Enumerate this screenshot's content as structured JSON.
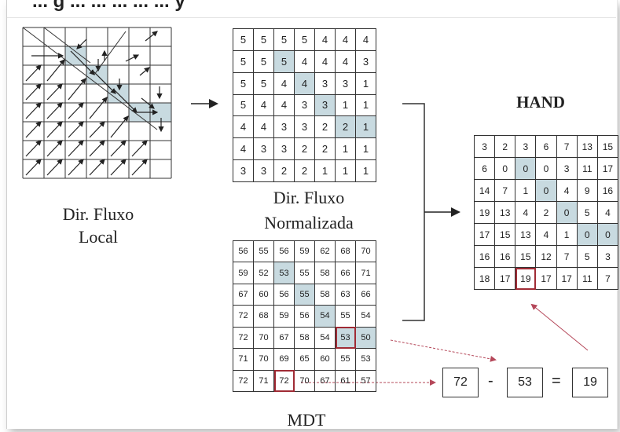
{
  "cut_header": "... g ... ... ... ... ... y",
  "local_flow": {
    "label_line1": "Dir. Fluxo",
    "label_line2": "Local"
  },
  "norm_flow": {
    "label_line1": "Dir. Fluxo",
    "label_line2": "Normalizada",
    "rows": [
      [
        "5",
        "5",
        "5",
        "5",
        "4",
        "4",
        "4"
      ],
      [
        "5",
        "5",
        "5",
        "4",
        "4",
        "4",
        "3"
      ],
      [
        "5",
        "5",
        "4",
        "4",
        "3",
        "3",
        "1"
      ],
      [
        "5",
        "4",
        "4",
        "3",
        "3",
        "1",
        "1"
      ],
      [
        "4",
        "4",
        "3",
        "3",
        "2",
        "2",
        "1"
      ],
      [
        "4",
        "3",
        "3",
        "2",
        "2",
        "1",
        "1"
      ],
      [
        "3",
        "3",
        "2",
        "2",
        "1",
        "1",
        "1"
      ]
    ],
    "highlight": [
      [
        1,
        2
      ],
      [
        2,
        3
      ],
      [
        3,
        4
      ],
      [
        4,
        5
      ],
      [
        4,
        6
      ]
    ]
  },
  "mdt": {
    "label": "MDT",
    "rows": [
      [
        "56",
        "55",
        "56",
        "59",
        "62",
        "68",
        "70"
      ],
      [
        "59",
        "52",
        "53",
        "55",
        "58",
        "66",
        "71"
      ],
      [
        "67",
        "60",
        "56",
        "55",
        "58",
        "63",
        "66"
      ],
      [
        "72",
        "68",
        "59",
        "56",
        "54",
        "55",
        "54"
      ],
      [
        "72",
        "70",
        "67",
        "58",
        "54",
        "53",
        "50"
      ],
      [
        "71",
        "70",
        "69",
        "65",
        "60",
        "55",
        "53"
      ],
      [
        "72",
        "71",
        "72",
        "70",
        "67",
        "61",
        "57"
      ]
    ],
    "highlight": [
      [
        1,
        2
      ],
      [
        2,
        3
      ],
      [
        3,
        4
      ],
      [
        4,
        5
      ],
      [
        4,
        6
      ]
    ],
    "boxed": [
      [
        4,
        5
      ],
      [
        6,
        2
      ]
    ]
  },
  "hand": {
    "title": "HAND",
    "rows": [
      [
        "3",
        "2",
        "3",
        "6",
        "7",
        "13",
        "15"
      ],
      [
        "6",
        "0",
        "0",
        "0",
        "3",
        "11",
        "17"
      ],
      [
        "14",
        "7",
        "1",
        "0",
        "4",
        "9",
        "16"
      ],
      [
        "19",
        "13",
        "4",
        "2",
        "0",
        "5",
        "4"
      ],
      [
        "17",
        "15",
        "13",
        "4",
        "1",
        "0",
        "0"
      ],
      [
        "16",
        "16",
        "15",
        "12",
        "7",
        "5",
        "3"
      ],
      [
        "18",
        "17",
        "19",
        "17",
        "17",
        "11",
        "7"
      ]
    ],
    "highlight": [
      [
        1,
        2
      ],
      [
        2,
        3
      ],
      [
        3,
        4
      ],
      [
        4,
        5
      ],
      [
        4,
        6
      ]
    ],
    "boxed": [
      [
        6,
        2
      ]
    ]
  },
  "equation": {
    "a": "72",
    "minus": "-",
    "b": "53",
    "equals": "=",
    "result": "19"
  }
}
